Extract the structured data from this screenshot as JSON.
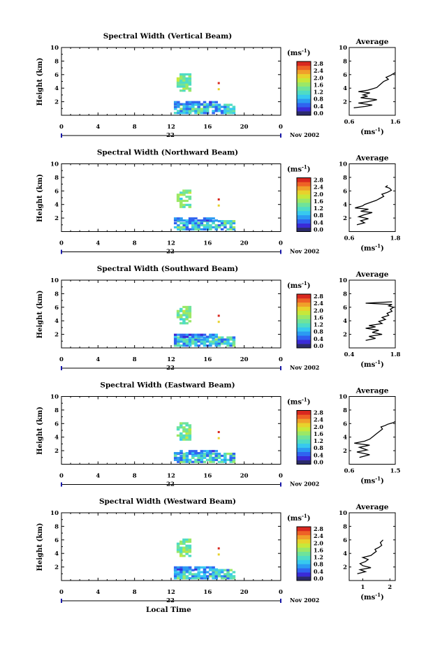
{
  "figure": {
    "xlabel": "Local Time"
  },
  "colorbar": {
    "unit": "(ms",
    "unit_exp": "-1",
    "unit_close": ")",
    "ticks": [
      "0.0",
      "0.4",
      "0.8",
      "1.2",
      "1.6",
      "2.0",
      "2.4",
      "2.8"
    ],
    "colors": [
      "#2b2b6b",
      "#3a2bd8",
      "#2f63f0",
      "#2b9bf2",
      "#37c9ef",
      "#4fdcc5",
      "#6fe39a",
      "#9be866",
      "#c7e83a",
      "#e8d22c",
      "#f0a02a",
      "#ee6226",
      "#d9281f"
    ]
  },
  "avg_panel": {
    "title": "Average",
    "xlabel_unit": "(ms",
    "xlabel_exp": "-1",
    "xlabel_close": ")"
  },
  "chart_data": [
    {
      "type": "heatmap",
      "title": "Spectral Width (Vertical Beam)",
      "xlabel": "Local Time",
      "ylabel": "Height (km)",
      "xlim": [
        0,
        24
      ],
      "ylim": [
        0,
        10
      ],
      "xticks": [
        "0",
        "4",
        "8",
        "12",
        "16",
        "20",
        "0"
      ],
      "yticks": [
        "2",
        "4",
        "6",
        "8",
        "10"
      ],
      "date_label": "22",
      "month_label": "Nov 2002",
      "zlim": [
        0.0,
        2.8
      ],
      "profile": {
        "title": "Average",
        "xlim": [
          0.6,
          1.6
        ],
        "xticks": [
          "0.6",
          "1.6"
        ],
        "ylim": [
          0,
          10
        ],
        "x": [
          0.7,
          0.95,
          1.1,
          0.8,
          1.0,
          1.2,
          0.85,
          1.0,
          0.9,
          1.05,
          0.8,
          1.0,
          1.1,
          1.2,
          1.25,
          1.3,
          1.35,
          1.45,
          1.4,
          1.5,
          1.55,
          1.6
        ],
        "y": [
          1.1,
          1.3,
          1.5,
          1.8,
          2.0,
          2.3,
          2.6,
          2.8,
          3.0,
          3.3,
          3.5,
          3.7,
          3.9,
          4.1,
          4.4,
          4.7,
          5.0,
          5.3,
          5.6,
          5.9,
          6.1,
          6.3
        ]
      }
    },
    {
      "type": "heatmap",
      "title": "Spectral Width (Northward Beam)",
      "xlabel": "Local Time",
      "ylabel": "Height (km)",
      "xlim": [
        0,
        24
      ],
      "ylim": [
        0,
        10
      ],
      "xticks": [
        "0",
        "4",
        "8",
        "12",
        "16",
        "20",
        "0"
      ],
      "yticks": [
        "2",
        "4",
        "6",
        "8",
        "10"
      ],
      "date_label": "22",
      "month_label": "Nov 2002",
      "zlim": [
        0.0,
        2.8
      ],
      "profile": {
        "title": "Average",
        "xlim": [
          0.6,
          1.8
        ],
        "xticks": [
          "0.6",
          "1.8"
        ],
        "ylim": [
          0,
          10
        ],
        "x": [
          0.8,
          1.0,
          0.9,
          1.1,
          0.85,
          1.0,
          1.2,
          0.9,
          1.1,
          0.75,
          0.95,
          1.0,
          1.15,
          1.3,
          1.4,
          1.5,
          1.45,
          1.6,
          1.7,
          1.65,
          1.55,
          1.6
        ],
        "y": [
          1.0,
          1.3,
          1.6,
          1.9,
          2.2,
          2.5,
          2.8,
          3.0,
          3.3,
          3.5,
          3.8,
          4.0,
          4.3,
          4.6,
          4.9,
          5.2,
          5.5,
          5.8,
          6.1,
          6.4,
          6.6,
          6.8
        ]
      }
    },
    {
      "type": "heatmap",
      "title": "Spectral Width (Southward Beam)",
      "xlabel": "Local Time",
      "ylabel": "Height (km)",
      "xlim": [
        0,
        24
      ],
      "ylim": [
        0,
        10
      ],
      "xticks": [
        "0",
        "4",
        "8",
        "12",
        "16",
        "20",
        "0"
      ],
      "yticks": [
        "2",
        "4",
        "6",
        "8",
        "10"
      ],
      "date_label": "22",
      "month_label": "Nov 2002",
      "zlim": [
        0.0,
        2.8
      ],
      "profile": {
        "title": "Average",
        "xlim": [
          0.4,
          1.8
        ],
        "xticks": [
          "0.4",
          "1.8"
        ],
        "ylim": [
          0,
          10
        ],
        "x": [
          0.9,
          1.2,
          1.0,
          1.4,
          1.1,
          1.3,
          0.9,
          1.2,
          1.0,
          1.4,
          1.3,
          1.5,
          1.4,
          1.6,
          1.55,
          1.7,
          1.65,
          1.75,
          1.6,
          1.7,
          0.9,
          1.7
        ],
        "y": [
          1.1,
          1.4,
          1.7,
          2.0,
          2.3,
          2.6,
          2.9,
          3.1,
          3.3,
          3.6,
          3.9,
          4.2,
          4.5,
          4.8,
          5.1,
          5.4,
          5.7,
          6.0,
          6.2,
          6.4,
          6.6,
          6.8
        ]
      }
    },
    {
      "type": "heatmap",
      "title": "Spectral Width (Eastward Beam)",
      "xlabel": "Local Time",
      "ylabel": "Height (km)",
      "xlim": [
        0,
        24
      ],
      "ylim": [
        0,
        10
      ],
      "xticks": [
        "0",
        "4",
        "8",
        "12",
        "16",
        "20",
        "0"
      ],
      "yticks": [
        "2",
        "4",
        "6",
        "8",
        "10"
      ],
      "date_label": "22",
      "month_label": "Nov 2002",
      "zlim": [
        0.0,
        2.8
      ],
      "profile": {
        "title": "Average",
        "xlim": [
          0.6,
          1.5
        ],
        "xticks": [
          "0.6",
          "1.5"
        ],
        "ylim": [
          0,
          10
        ],
        "x": [
          0.8,
          1.0,
          0.75,
          0.95,
          0.8,
          1.0,
          0.7,
          0.9,
          1.0,
          1.05,
          1.1,
          1.15,
          1.2,
          1.25,
          1.22,
          1.3,
          1.35,
          1.4,
          1.45,
          1.5
        ],
        "y": [
          1.0,
          1.4,
          1.8,
          2.1,
          2.5,
          2.8,
          3.1,
          3.4,
          3.7,
          4.0,
          4.3,
          4.6,
          4.9,
          5.2,
          5.5,
          5.7,
          5.9,
          6.0,
          6.1,
          6.3
        ]
      }
    },
    {
      "type": "heatmap",
      "title": "Spectral Width (Westward Beam)",
      "xlabel": "Local Time",
      "ylabel": "Height (km)",
      "xlim": [
        0,
        24
      ],
      "ylim": [
        0,
        10
      ],
      "xticks": [
        "0",
        "4",
        "8",
        "12",
        "16",
        "20",
        "0"
      ],
      "yticks": [
        "2",
        "4",
        "6",
        "8",
        "10"
      ],
      "date_label": "22",
      "month_label": "Nov 2002",
      "zlim": [
        0.0,
        2.8
      ],
      "profile": {
        "title": "Average",
        "xlim": [
          0.5,
          2.2
        ],
        "xticks": [
          "1",
          "2"
        ],
        "ylim": [
          0,
          10
        ],
        "x": [
          0.8,
          1.1,
          0.9,
          1.3,
          1.0,
          0.9,
          1.1,
          1.2,
          1.0,
          1.3,
          1.4,
          1.5,
          1.45,
          1.6,
          1.7,
          1.65,
          1.75
        ],
        "y": [
          1.0,
          1.3,
          1.6,
          1.9,
          2.2,
          2.5,
          2.8,
          3.1,
          3.4,
          3.7,
          4.0,
          4.3,
          4.6,
          4.9,
          5.2,
          5.6,
          6.0
        ]
      }
    }
  ]
}
